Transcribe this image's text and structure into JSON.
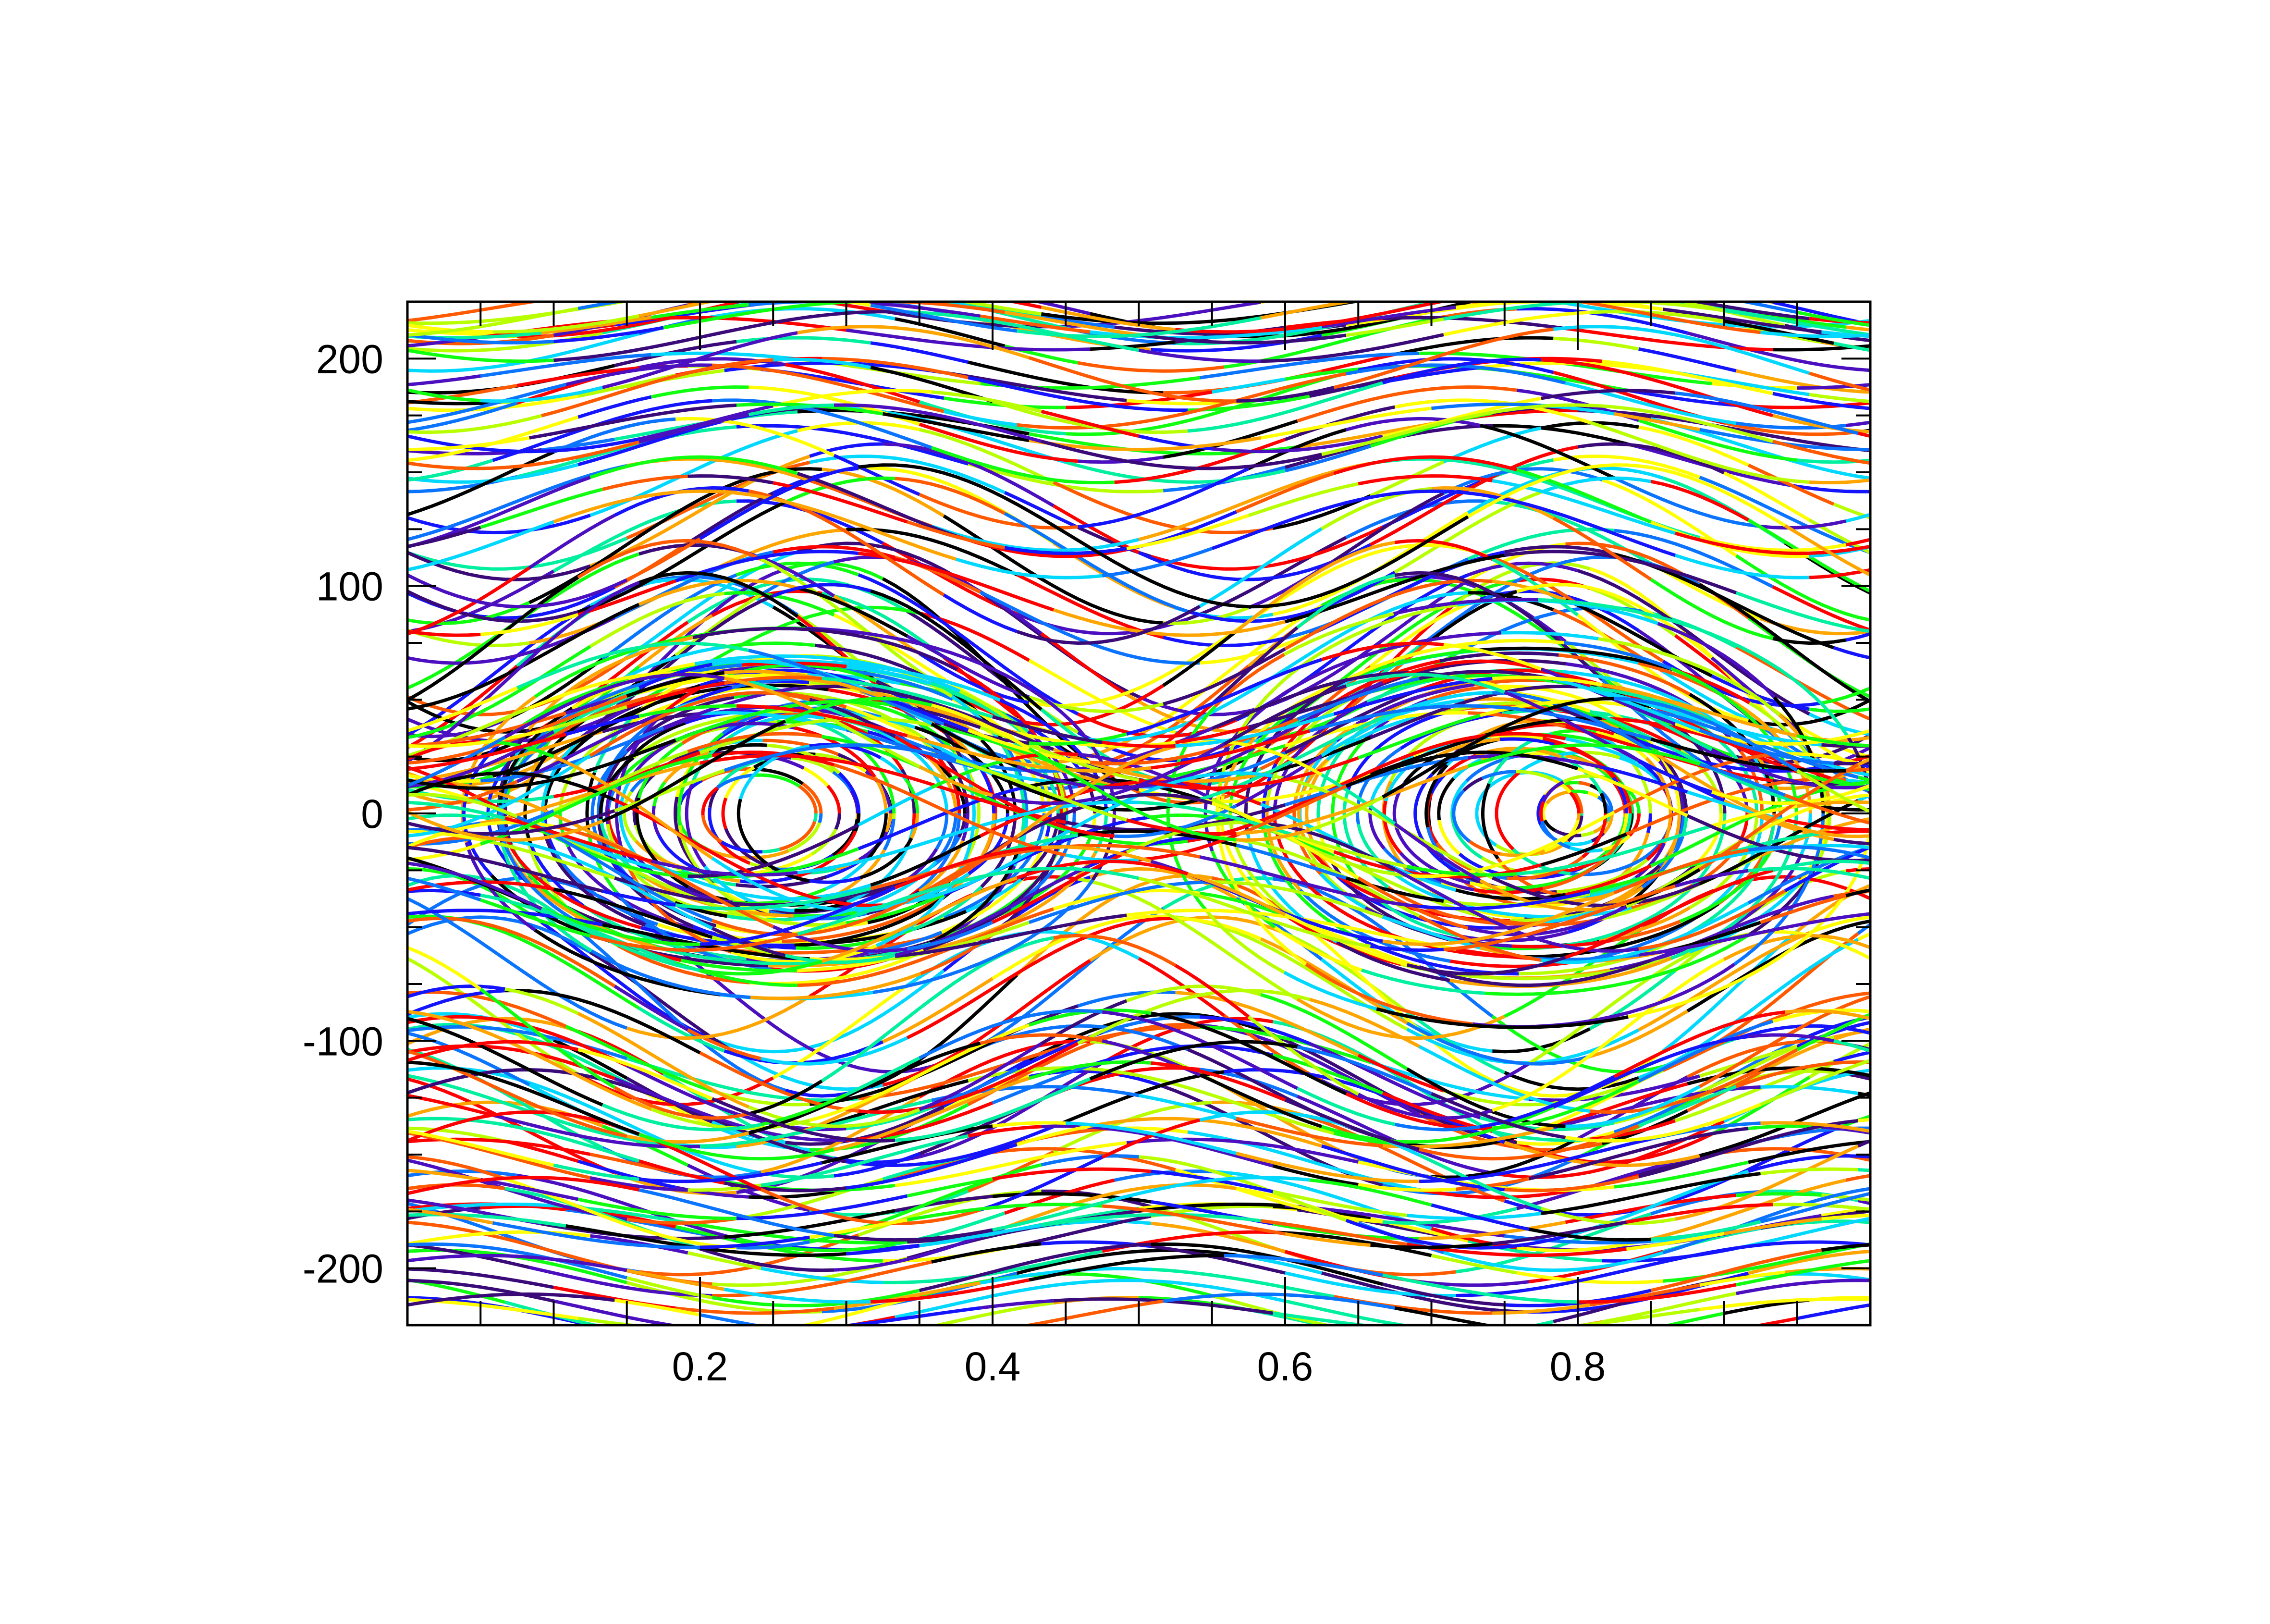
{
  "chart_data": {
    "type": "line",
    "subtype": "phase-space-trajectories",
    "title": "",
    "xlabel": "",
    "ylabel": "",
    "xlim": [
      0.0,
      1.0
    ],
    "ylim": [
      -225,
      225
    ],
    "x_ticks": [
      0.2,
      0.4,
      0.6,
      0.8
    ],
    "x_tick_labels": [
      "0.2",
      "0.4",
      "0.6",
      "0.8"
    ],
    "y_ticks": [
      -200,
      -100,
      0,
      100,
      200
    ],
    "y_tick_labels": [
      "-200",
      "-100",
      "0",
      "100",
      "200"
    ],
    "x_minor_step": 0.05,
    "y_minor_step": 25,
    "grid": false,
    "legend": "none",
    "colormap": [
      "#000000",
      "#3a0a78",
      "#4b0fbf",
      "#1414ff",
      "#0a74ff",
      "#00d8ff",
      "#00f0a0",
      "#10ff10",
      "#b8ff00",
      "#ffff00",
      "#ffa500",
      "#ff5a00",
      "#ff0000"
    ],
    "islands": [
      {
        "center_x": 0.26,
        "center_y": 0
      },
      {
        "center_x": 0.76,
        "center_y": 0
      }
    ],
    "trajectory_families": [
      {
        "kind": "passing",
        "velocity_min": -225,
        "velocity_max": -55,
        "count": 62
      },
      {
        "kind": "passing",
        "velocity_min": 55,
        "velocity_max": 225,
        "count": 62
      },
      {
        "kind": "trapped",
        "island": 0,
        "half_width_max": 0.22,
        "amplitude_max": 80,
        "count": 34
      },
      {
        "kind": "trapped",
        "island": 1,
        "half_width_max": 0.22,
        "amplitude_max": 80,
        "count": 34
      },
      {
        "kind": "separatrix-region",
        "velocity_min": -55,
        "velocity_max": 55,
        "count": 38
      }
    ]
  }
}
